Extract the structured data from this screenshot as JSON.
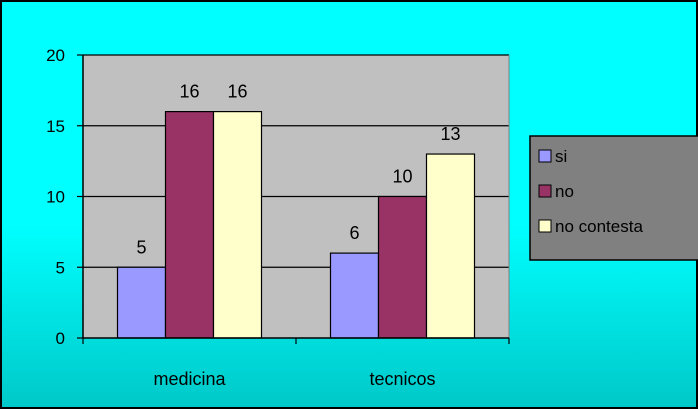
{
  "chart_data": {
    "type": "bar",
    "categories": [
      "medicina",
      "tecnicos"
    ],
    "series": [
      {
        "name": "si",
        "values": [
          5,
          6
        ],
        "color": "#9999ff"
      },
      {
        "name": "no",
        "values": [
          16,
          10
        ],
        "color": "#993366"
      },
      {
        "name": "no contesta",
        "values": [
          16,
          13
        ],
        "color": "#ffffcc"
      }
    ],
    "yticks": [
      0,
      5,
      10,
      15,
      20
    ],
    "ylim": [
      0,
      20
    ],
    "title": "",
    "xlabel": "",
    "ylabel": "",
    "grid": "horizontal",
    "data_labels": true,
    "legend": "right",
    "colors": {
      "plot_area": "#c0c0c0",
      "gridline": "#000000",
      "legend_bg": "#808080",
      "background_top": "#00ffff",
      "background_bottom": "#00c8c8"
    }
  }
}
